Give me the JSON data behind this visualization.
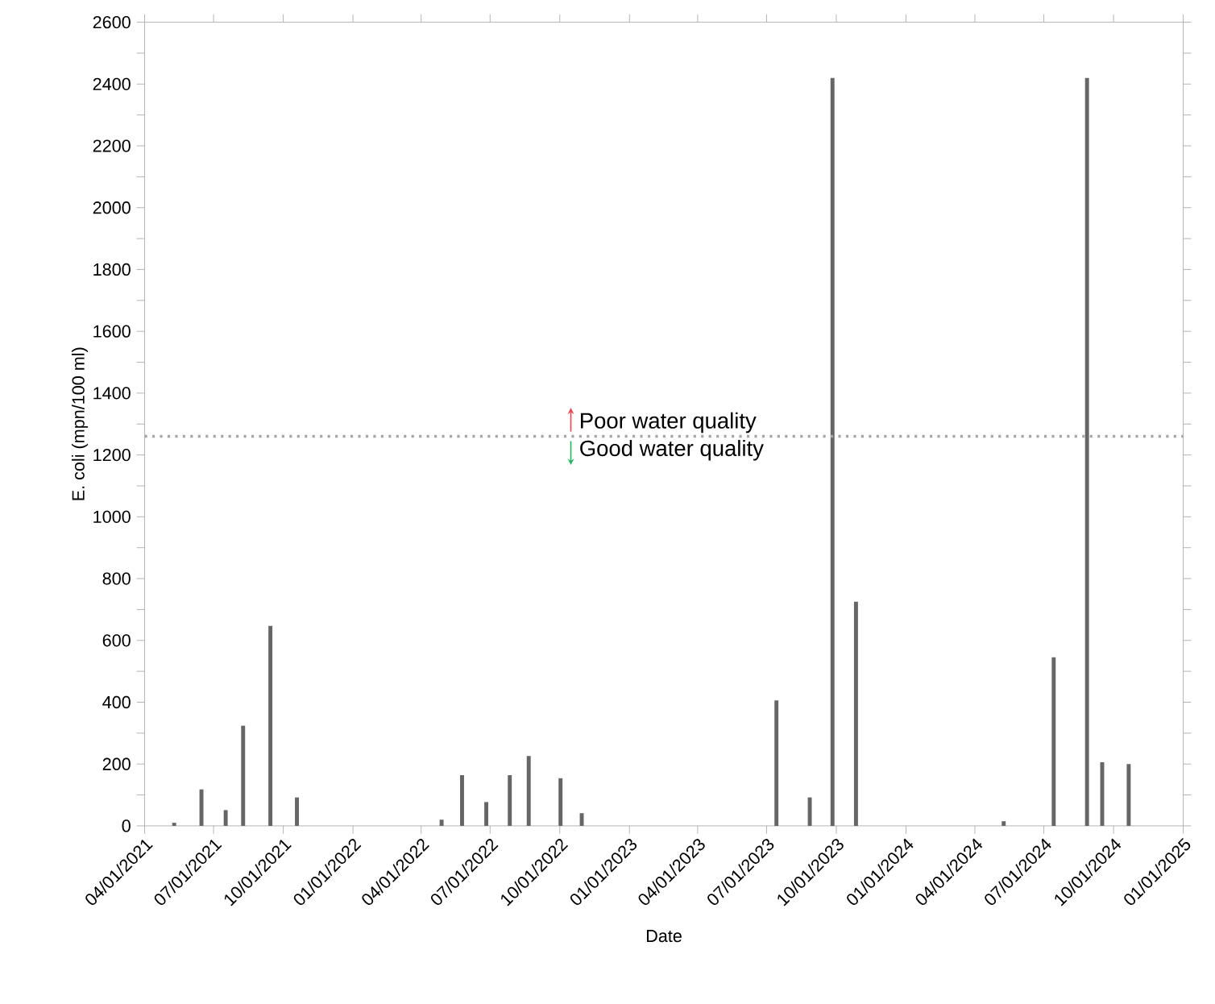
{
  "chart_data": {
    "type": "bar",
    "xlabel": "Date",
    "ylabel": "E. coli (mpn/100 ml)",
    "x": [
      "2021-05-10",
      "2021-06-15",
      "2021-07-17",
      "2021-08-09",
      "2021-09-14",
      "2021-10-19",
      "2022-04-28",
      "2022-05-25",
      "2022-06-26",
      "2022-07-27",
      "2022-08-21",
      "2022-10-02",
      "2022-10-30",
      "2023-07-14",
      "2023-08-27",
      "2023-09-26",
      "2023-10-27",
      "2024-05-09",
      "2024-07-14",
      "2024-08-27",
      "2024-09-16",
      "2024-10-21"
    ],
    "values": [
      10,
      118,
      51,
      324,
      647,
      92,
      20,
      164,
      77,
      164,
      226,
      154,
      41,
      406,
      92,
      2420,
      725,
      15,
      545,
      2420,
      206,
      200
    ],
    "color": "#666666",
    "xlim": [
      "2021-04-01",
      "2025-01-01"
    ],
    "xticks": [
      {
        "value": "2021-04-01",
        "label": "04/01/2021"
      },
      {
        "value": "2021-07-01",
        "label": "07/01/2021"
      },
      {
        "value": "2021-10-01",
        "label": "10/01/2021"
      },
      {
        "value": "2022-01-01",
        "label": "01/01/2022"
      },
      {
        "value": "2022-04-01",
        "label": "04/01/2022"
      },
      {
        "value": "2022-07-01",
        "label": "07/01/2022"
      },
      {
        "value": "2022-10-01",
        "label": "10/01/2022"
      },
      {
        "value": "2023-01-01",
        "label": "01/01/2023"
      },
      {
        "value": "2023-04-01",
        "label": "04/01/2023"
      },
      {
        "value": "2023-07-01",
        "label": "07/01/2023"
      },
      {
        "value": "2023-10-01",
        "label": "10/01/2023"
      },
      {
        "value": "2024-01-01",
        "label": "01/01/2024"
      },
      {
        "value": "2024-04-01",
        "label": "04/01/2024"
      },
      {
        "value": "2024-07-01",
        "label": "07/01/2024"
      },
      {
        "value": "2024-10-01",
        "label": "10/01/2024"
      },
      {
        "value": "2025-01-01",
        "label": "01/01/2025"
      }
    ],
    "ylim": [
      0,
      2600
    ],
    "yticks": [
      0,
      {
        "value": 100,
        "label": null
      },
      200,
      {
        "value": 300,
        "label": null
      },
      400,
      {
        "value": 500,
        "label": null
      },
      600,
      {
        "value": 700,
        "label": null
      },
      800,
      {
        "value": 900,
        "label": null
      },
      1000,
      {
        "value": 1100,
        "label": null
      },
      1200,
      {
        "value": 1300,
        "label": null
      },
      1400,
      {
        "value": 1500,
        "label": null
      },
      1600,
      {
        "value": 1700,
        "label": null
      },
      1800,
      {
        "value": 1900,
        "label": null
      },
      2000,
      {
        "value": 2100,
        "label": null
      },
      2200,
      {
        "value": 2300,
        "label": null
      },
      2400,
      {
        "value": 2500,
        "label": null
      },
      2600
    ],
    "ref_lines": [
      {
        "axis": "y",
        "value": 1260,
        "color": "#a6a6a6",
        "line_style": "dotted"
      }
    ],
    "annotations": [
      {
        "text": "Poor water quality",
        "x": "2022-10-24",
        "y": 1260
      },
      {
        "text": "Good water quality",
        "x": "2022-10-24",
        "y": 1260
      }
    ],
    "grid": false
  }
}
